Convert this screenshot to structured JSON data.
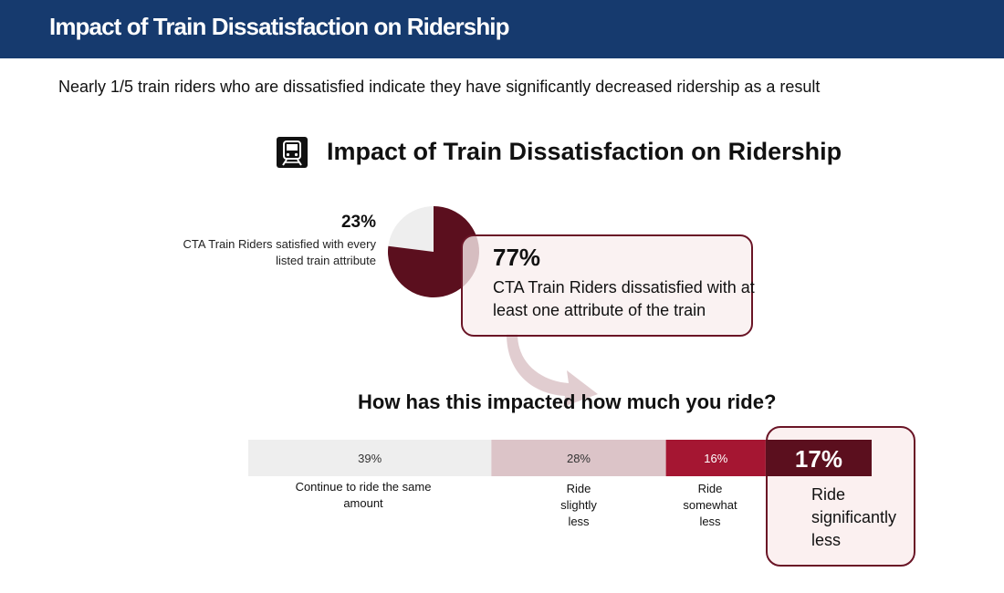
{
  "header": {
    "title": "Impact of Train Dissatisfaction on Ridership"
  },
  "subtitle": "Nearly 1/5 train riders who are dissatisfied indicate they have significantly decreased ridership as a result",
  "icon": "train-icon",
  "colors": {
    "header_bg": "#163a6e",
    "pie_dissatisfied": "#5b0f1e",
    "pie_satisfied": "#eeeeee",
    "seg_same": "#eeeeee",
    "seg_slightly": "#dcc4c8",
    "seg_somewhat": "#a51632",
    "seg_significantly": "#5b0f1e",
    "callout_border": "#6a1526",
    "arrow": "#dcc4c8"
  },
  "chart_data": [
    {
      "type": "pie",
      "title": "Impact of Train Dissatisfaction on Ridership",
      "slices": [
        {
          "name": "satisfied",
          "value": 23,
          "pct_label": "23%",
          "label": "CTA Train Riders satisfied with every listed train attribute"
        },
        {
          "name": "dissatisfied",
          "value": 77,
          "pct_label": "77%",
          "label": "CTA Train Riders dissatisfied with at least one attribute of the train"
        }
      ]
    },
    {
      "type": "bar",
      "orientation": "horizontal-stacked",
      "question": "How has this impacted how much you ride?",
      "segments": [
        {
          "value": 39,
          "pct_label": "39%",
          "label": "Continue to ride the same amount"
        },
        {
          "value": 28,
          "pct_label": "28%",
          "label": "Ride slightly less"
        },
        {
          "value": 16,
          "pct_label": "16%",
          "label": "Ride somewhat less"
        },
        {
          "value": 17,
          "pct_label": "17%",
          "label": "Ride significantly less"
        }
      ]
    }
  ]
}
